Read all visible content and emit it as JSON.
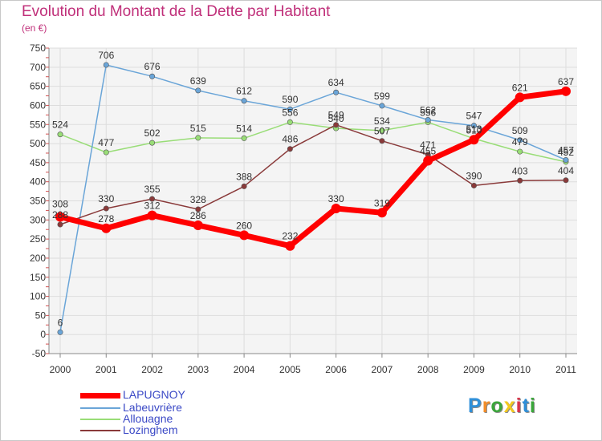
{
  "chart_data": {
    "type": "line",
    "title": "Evolution du Montant de la Dette par Habitant",
    "subtitle": "(en €)",
    "x": [
      "2000",
      "2001",
      "2002",
      "2003",
      "2004",
      "2005",
      "2006",
      "2007",
      "2008",
      "2009",
      "2010",
      "2011"
    ],
    "ylim": [
      -50,
      750
    ],
    "yticks": [
      "-50",
      "0",
      "50",
      "100",
      "150",
      "200",
      "250",
      "300",
      "350",
      "400",
      "450",
      "500",
      "550",
      "600",
      "650",
      "700",
      "750"
    ],
    "ytick_values": [
      -50,
      0,
      50,
      100,
      150,
      200,
      250,
      300,
      350,
      400,
      450,
      500,
      550,
      600,
      650,
      700,
      750
    ],
    "grid": true,
    "series": [
      {
        "name": "LAPUGNOY",
        "color": "#ff0000",
        "values": [
          308,
          278,
          312,
          286,
          260,
          232,
          330,
          319,
          455,
          510,
          621,
          637
        ],
        "labels": [
          "308",
          "278",
          "312",
          "286",
          "260",
          "232",
          "330",
          "319",
          "455",
          "510",
          "621",
          "637"
        ]
      },
      {
        "name": "Labeuvrière",
        "color": "#6aa5d8",
        "values": [
          6,
          706,
          676,
          639,
          612,
          590,
          634,
          599,
          562,
          547,
          509,
          457
        ],
        "labels": [
          "6",
          "706",
          "676",
          "639",
          "612",
          "590",
          "634",
          "599",
          "562",
          "547",
          "509",
          "457"
        ]
      },
      {
        "name": "Allouagne",
        "color": "#99dd77",
        "values": [
          524,
          477,
          502,
          515,
          514,
          556,
          540,
          534,
          556,
          513,
          479,
          452
        ],
        "labels": [
          "524",
          "477",
          "502",
          "515",
          "514",
          "556",
          "540",
          "534",
          "556",
          "513",
          "479",
          "452"
        ]
      },
      {
        "name": "Lozinghem",
        "color": "#8a3a3a",
        "values": [
          288,
          330,
          355,
          328,
          388,
          486,
          549,
          507,
          471,
          390,
          403,
          404
        ],
        "labels": [
          "288",
          "330",
          "355",
          "328",
          "388",
          "486",
          "549",
          "507",
          "471",
          "390",
          "403",
          "404"
        ]
      }
    ],
    "legend_position": "bottom-left"
  },
  "logo": {
    "letters": [
      "P",
      "r",
      "o",
      "x",
      "i",
      "t",
      "i"
    ],
    "colors": [
      "#2f8fd8",
      "#f28c28",
      "#3aa63a",
      "#f2c81e",
      "#d8344a",
      "#2f8fd8",
      "#3aa63a"
    ]
  }
}
